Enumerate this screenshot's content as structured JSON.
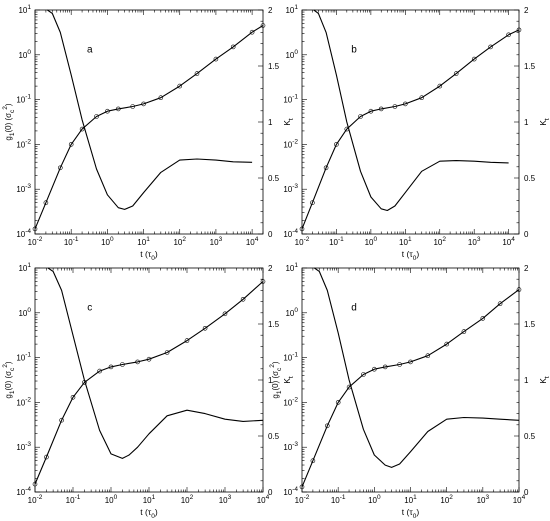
{
  "chart_data": [
    {
      "panel": "a",
      "type": "line",
      "xscale": "log",
      "xlim": [
        0.01,
        20000
      ],
      "xticks": [
        0.01,
        0.1,
        1,
        10,
        100,
        1000,
        10000
      ],
      "x_tick_labels": [
        "10-2",
        "10-1",
        "100",
        "101",
        "102",
        "103",
        "104"
      ],
      "left_axis": {
        "label": "g1(0) (σc2)",
        "scale": "log",
        "ylim": [
          0.0001,
          10
        ],
        "ticks": [
          "10-4",
          "10-3",
          "10-2",
          "10-1",
          "100",
          "101"
        ]
      },
      "right_axis": {
        "label": "Kt",
        "scale": "linear",
        "ylim": [
          0,
          2
        ],
        "ticks": [
          "0",
          "0.5",
          "1",
          "1.5",
          "2"
        ]
      },
      "xlabel": "t (τ0)",
      "series": [
        {
          "axis": "left",
          "style": "line",
          "x": [
            0.01,
            0.02,
            0.05,
            0.1,
            0.2,
            0.5,
            1,
            2,
            5,
            10,
            30,
            100,
            300,
            1000,
            3000,
            10000,
            20000
          ],
          "y": [
            0.00013,
            0.0005,
            0.003,
            0.01,
            0.022,
            0.042,
            0.055,
            0.062,
            0.07,
            0.08,
            0.11,
            0.2,
            0.38,
            0.8,
            1.5,
            3.2,
            4.5
          ]
        },
        {
          "axis": "left",
          "style": "markers",
          "x": [
            0.01,
            0.02,
            0.05,
            0.1,
            0.2,
            0.5,
            1,
            2,
            5,
            10,
            30,
            100,
            300,
            1000,
            3000,
            10000,
            20000
          ],
          "y": [
            0.00013,
            0.0005,
            0.003,
            0.01,
            0.022,
            0.042,
            0.055,
            0.062,
            0.07,
            0.08,
            0.11,
            0.2,
            0.38,
            0.8,
            1.5,
            3.2,
            4.5
          ]
        },
        {
          "axis": "right",
          "style": "line",
          "x": [
            0.022,
            0.03,
            0.05,
            0.1,
            0.2,
            0.5,
            1,
            2,
            3,
            5,
            10,
            30,
            100,
            300,
            1000,
            3000,
            10000
          ],
          "y": [
            2.0,
            1.97,
            1.8,
            1.42,
            1.02,
            0.58,
            0.35,
            0.235,
            0.22,
            0.25,
            0.37,
            0.55,
            0.66,
            0.67,
            0.66,
            0.645,
            0.64
          ]
        }
      ]
    },
    {
      "panel": "b",
      "type": "line",
      "xscale": "log",
      "xlim": [
        0.01,
        20000
      ],
      "xticks": [
        0.01,
        0.1,
        1,
        10,
        100,
        1000,
        10000
      ],
      "x_tick_labels": [
        "10-2",
        "10-1",
        "100",
        "101",
        "102",
        "103",
        "104"
      ],
      "left_axis": {
        "label": "",
        "scale": "log",
        "ylim": [
          0.0001,
          10
        ],
        "ticks": [
          "10-4",
          "10-3",
          "10-2",
          "10-1",
          "100",
          "101"
        ]
      },
      "right_axis": {
        "label": "Kt",
        "scale": "linear",
        "ylim": [
          0,
          2
        ],
        "ticks": [
          "0",
          "0.5",
          "1",
          "1.5",
          "2"
        ]
      },
      "xlabel": "t (τ0)",
      "series": [
        {
          "axis": "left",
          "style": "line",
          "x": [
            0.01,
            0.02,
            0.05,
            0.1,
            0.2,
            0.5,
            1,
            2,
            5,
            10,
            30,
            100,
            300,
            1000,
            3000,
            10000,
            20000
          ],
          "y": [
            0.00013,
            0.0005,
            0.003,
            0.01,
            0.022,
            0.042,
            0.055,
            0.062,
            0.07,
            0.08,
            0.11,
            0.2,
            0.38,
            0.8,
            1.5,
            2.8,
            3.6
          ]
        },
        {
          "axis": "left",
          "style": "markers",
          "x": [
            0.01,
            0.02,
            0.05,
            0.1,
            0.2,
            0.5,
            1,
            2,
            5,
            10,
            30,
            100,
            300,
            1000,
            3000,
            10000,
            20000
          ],
          "y": [
            0.00013,
            0.0005,
            0.003,
            0.01,
            0.022,
            0.042,
            0.055,
            0.062,
            0.07,
            0.08,
            0.11,
            0.2,
            0.38,
            0.8,
            1.5,
            2.8,
            3.6
          ]
        },
        {
          "axis": "right",
          "style": "line",
          "x": [
            0.022,
            0.03,
            0.05,
            0.1,
            0.2,
            0.5,
            1,
            2,
            3,
            5,
            10,
            30,
            100,
            300,
            1000,
            3000,
            10000
          ],
          "y": [
            2.0,
            1.97,
            1.8,
            1.42,
            1.0,
            0.56,
            0.33,
            0.225,
            0.21,
            0.25,
            0.37,
            0.56,
            0.65,
            0.655,
            0.65,
            0.64,
            0.635
          ]
        }
      ]
    },
    {
      "panel": "c",
      "type": "line",
      "xscale": "log",
      "xlim": [
        0.01,
        10000
      ],
      "xticks": [
        0.01,
        0.1,
        1,
        10,
        100,
        1000,
        10000
      ],
      "x_tick_labels": [
        "10-2",
        "10-1",
        "100",
        "101",
        "102",
        "103",
        "104"
      ],
      "left_axis": {
        "label": "g1(0) (σc2)",
        "scale": "log",
        "ylim": [
          0.0001,
          10
        ],
        "ticks": [
          "10-4",
          "10-3",
          "10-2",
          "10-1",
          "100",
          "101"
        ]
      },
      "right_axis": {
        "label": "Kt",
        "scale": "linear",
        "ylim": [
          0,
          2
        ],
        "ticks": [
          "0",
          "0.5",
          "1",
          "1.5",
          "2"
        ]
      },
      "xlabel": "t (τ0)",
      "series": [
        {
          "axis": "left",
          "style": "line",
          "x": [
            0.01,
            0.02,
            0.05,
            0.1,
            0.2,
            0.5,
            1,
            2,
            5,
            10,
            30,
            100,
            300,
            1000,
            3000,
            10000
          ],
          "y": [
            0.00015,
            0.0006,
            0.004,
            0.013,
            0.028,
            0.05,
            0.062,
            0.07,
            0.08,
            0.092,
            0.13,
            0.24,
            0.45,
            0.95,
            2.0,
            5.0
          ]
        },
        {
          "axis": "left",
          "style": "markers",
          "x": [
            0.01,
            0.02,
            0.05,
            0.1,
            0.2,
            0.5,
            1,
            2,
            5,
            10,
            30,
            100,
            300,
            1000,
            3000,
            10000
          ],
          "y": [
            0.00015,
            0.0006,
            0.004,
            0.013,
            0.028,
            0.05,
            0.062,
            0.07,
            0.08,
            0.092,
            0.13,
            0.24,
            0.45,
            0.95,
            2.0,
            5.0
          ]
        },
        {
          "axis": "right",
          "style": "line",
          "x": [
            0.022,
            0.03,
            0.05,
            0.1,
            0.2,
            0.5,
            1,
            2,
            3,
            5,
            10,
            30,
            100,
            300,
            1000,
            3000,
            10000
          ],
          "y": [
            2.0,
            1.97,
            1.8,
            1.4,
            1.0,
            0.55,
            0.34,
            0.3,
            0.33,
            0.4,
            0.52,
            0.68,
            0.73,
            0.7,
            0.65,
            0.63,
            0.64
          ]
        }
      ]
    },
    {
      "panel": "d",
      "type": "line",
      "xscale": "log",
      "xlim": [
        0.01,
        10000
      ],
      "xticks": [
        0.01,
        0.1,
        1,
        10,
        100,
        1000,
        10000
      ],
      "x_tick_labels": [
        "10-2",
        "10-1",
        "100",
        "101",
        "102",
        "103",
        "104"
      ],
      "left_axis": {
        "label": "g1(0) (σc2)",
        "scale": "log",
        "ylim": [
          0.0001,
          10
        ],
        "ticks": [
          "10-4",
          "10-3",
          "10-2",
          "10-1",
          "100",
          "101"
        ]
      },
      "right_axis": {
        "label": "Kt",
        "scale": "linear",
        "ylim": [
          0,
          2
        ],
        "ticks": [
          "0",
          "0.5",
          "1",
          "1.5",
          "2"
        ]
      },
      "xlabel": "t (τ0)",
      "series": [
        {
          "axis": "left",
          "style": "line",
          "x": [
            0.01,
            0.02,
            0.05,
            0.1,
            0.2,
            0.5,
            1,
            2,
            5,
            10,
            30,
            100,
            300,
            1000,
            3000,
            10000
          ],
          "y": [
            0.00013,
            0.0005,
            0.003,
            0.01,
            0.022,
            0.042,
            0.055,
            0.062,
            0.07,
            0.08,
            0.11,
            0.2,
            0.38,
            0.75,
            1.6,
            3.3
          ]
        },
        {
          "axis": "left",
          "style": "markers",
          "x": [
            0.01,
            0.02,
            0.05,
            0.1,
            0.2,
            0.5,
            1,
            2,
            5,
            10,
            30,
            100,
            300,
            1000,
            3000,
            10000
          ],
          "y": [
            0.00013,
            0.0005,
            0.003,
            0.01,
            0.022,
            0.042,
            0.055,
            0.062,
            0.07,
            0.08,
            0.11,
            0.2,
            0.38,
            0.75,
            1.6,
            3.3
          ]
        },
        {
          "axis": "right",
          "style": "line",
          "x": [
            0.022,
            0.03,
            0.05,
            0.1,
            0.2,
            0.5,
            1,
            2,
            3,
            5,
            10,
            30,
            100,
            300,
            1000,
            3000,
            10000
          ],
          "y": [
            2.0,
            1.97,
            1.8,
            1.42,
            1.0,
            0.56,
            0.33,
            0.24,
            0.22,
            0.25,
            0.36,
            0.54,
            0.65,
            0.665,
            0.66,
            0.65,
            0.64
          ]
        }
      ]
    }
  ]
}
